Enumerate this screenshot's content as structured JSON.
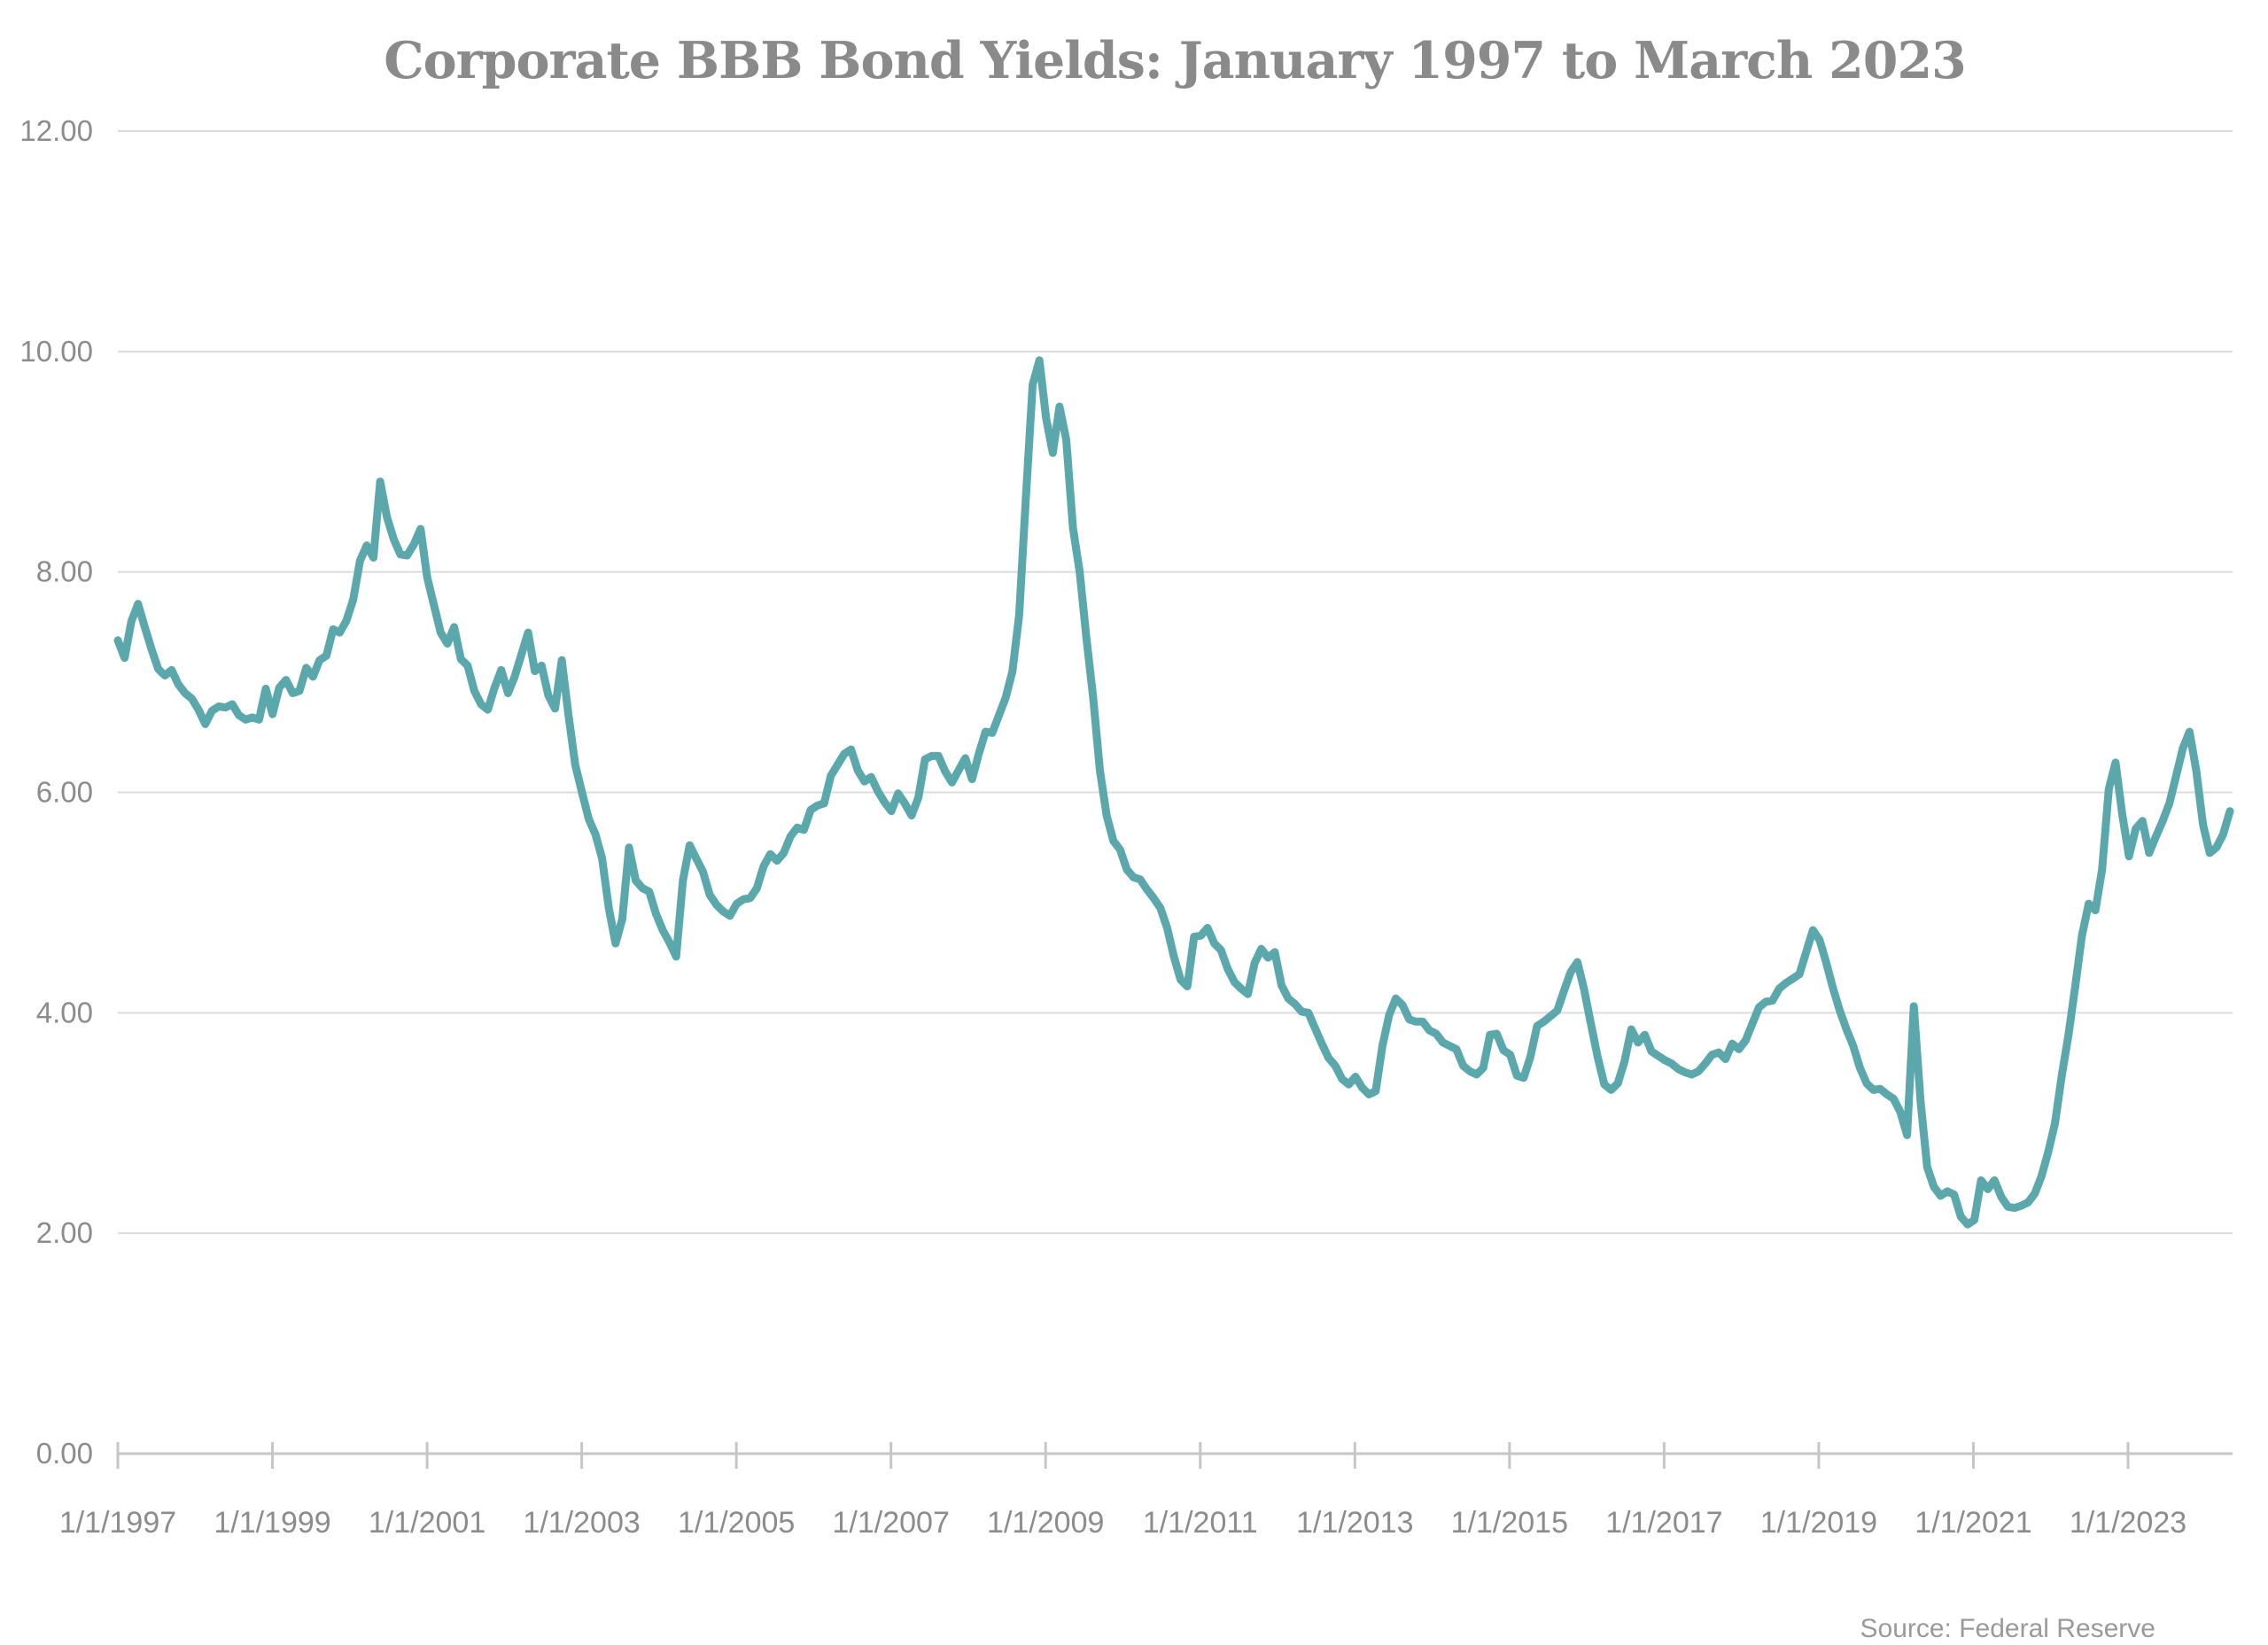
{
  "page": {
    "background_color": "#ffffff"
  },
  "chart_data": {
    "type": "line",
    "title": "Corporate BBB Bond Yields: January 1997 to March 2023",
    "source_note": "Source: Federal Reserve",
    "series_name": "Corporate BBB bond yield (%)",
    "frequency": "monthly",
    "start_date": "1/1/1997",
    "end_date": "3/1/2023",
    "legend_position": "none",
    "grid": "horizontal",
    "ylim": [
      0,
      12
    ],
    "y_tick_step": 2,
    "y_tick_labels": [
      "0.00",
      "2.00",
      "4.00",
      "6.00",
      "8.00",
      "10.00",
      "12.00"
    ],
    "x_tick_labels": [
      "1/1/1997",
      "1/1/1999",
      "1/1/2001",
      "1/1/2003",
      "1/1/2005",
      "1/1/2007",
      "1/1/2009",
      "1/1/2011",
      "1/1/2013",
      "1/1/2015",
      "1/1/2017",
      "1/1/2019",
      "1/1/2021",
      "1/1/2023"
    ],
    "line_color": "#5ba8ac",
    "gridline_color": "#dcdcdc",
    "axis_color": "#c6c6c6",
    "text_color": "#8c8c8c",
    "title_color": "#8a8a8a",
    "values": [
      7.38,
      7.22,
      7.55,
      7.71,
      7.5,
      7.3,
      7.12,
      7.06,
      7.11,
      6.98,
      6.9,
      6.85,
      6.75,
      6.62,
      6.74,
      6.78,
      6.77,
      6.8,
      6.7,
      6.66,
      6.68,
      6.66,
      6.94,
      6.71,
      6.95,
      7.02,
      6.9,
      6.92,
      7.13,
      7.05,
      7.2,
      7.24,
      7.48,
      7.45,
      7.56,
      7.75,
      8.1,
      8.24,
      8.13,
      8.82,
      8.5,
      8.3,
      8.16,
      8.15,
      8.25,
      8.39,
      7.95,
      7.7,
      7.45,
      7.35,
      7.5,
      7.21,
      7.15,
      6.92,
      6.8,
      6.75,
      6.95,
      7.11,
      6.9,
      7.05,
      7.25,
      7.45,
      7.1,
      7.15,
      6.88,
      6.76,
      7.2,
      6.7,
      6.25,
      6.0,
      5.76,
      5.62,
      5.4,
      4.95,
      4.63,
      4.85,
      5.5,
      5.2,
      5.13,
      5.1,
      4.9,
      4.75,
      4.64,
      4.51,
      5.2,
      5.52,
      5.4,
      5.28,
      5.07,
      4.98,
      4.92,
      4.88,
      4.99,
      5.03,
      5.04,
      5.13,
      5.33,
      5.44,
      5.38,
      5.45,
      5.6,
      5.68,
      5.66,
      5.84,
      5.88,
      5.9,
      6.15,
      6.25,
      6.35,
      6.39,
      6.2,
      6.1,
      6.14,
      6.01,
      5.91,
      5.83,
      5.99,
      5.9,
      5.79,
      5.95,
      6.3,
      6.33,
      6.33,
      6.19,
      6.09,
      6.2,
      6.31,
      6.12,
      6.35,
      6.55,
      6.54,
      6.7,
      6.86,
      7.1,
      7.61,
      8.68,
      9.7,
      9.92,
      9.4,
      9.08,
      9.5,
      9.2,
      8.4,
      8.0,
      7.4,
      6.86,
      6.2,
      5.79,
      5.56,
      5.48,
      5.3,
      5.23,
      5.21,
      5.12,
      5.04,
      4.95,
      4.77,
      4.51,
      4.3,
      4.24,
      4.69,
      4.7,
      4.77,
      4.63,
      4.57,
      4.4,
      4.28,
      4.22,
      4.17,
      4.45,
      4.58,
      4.5,
      4.55,
      4.25,
      4.13,
      4.08,
      4.01,
      4.0,
      3.86,
      3.72,
      3.59,
      3.52,
      3.4,
      3.35,
      3.42,
      3.32,
      3.26,
      3.29,
      3.7,
      3.98,
      4.13,
      4.07,
      3.94,
      3.92,
      3.92,
      3.84,
      3.81,
      3.73,
      3.7,
      3.67,
      3.52,
      3.47,
      3.44,
      3.5,
      3.8,
      3.81,
      3.66,
      3.62,
      3.43,
      3.41,
      3.6,
      3.88,
      3.92,
      3.97,
      4.02,
      4.2,
      4.37,
      4.46,
      4.21,
      3.9,
      3.6,
      3.35,
      3.3,
      3.36,
      3.56,
      3.85,
      3.73,
      3.8,
      3.65,
      3.61,
      3.57,
      3.54,
      3.49,
      3.46,
      3.44,
      3.47,
      3.54,
      3.62,
      3.64,
      3.58,
      3.72,
      3.67,
      3.75,
      3.9,
      4.05,
      4.1,
      4.11,
      4.22,
      4.27,
      4.31,
      4.35,
      4.55,
      4.75,
      4.66,
      4.45,
      4.22,
      4.02,
      3.85,
      3.7,
      3.5,
      3.36,
      3.3,
      3.31,
      3.26,
      3.22,
      3.1,
      2.89,
      4.06,
      3.2,
      2.6,
      2.42,
      2.34,
      2.38,
      2.35,
      2.15,
      2.08,
      2.12,
      2.48,
      2.4,
      2.48,
      2.33,
      2.24,
      2.23,
      2.25,
      2.28,
      2.36,
      2.52,
      2.74,
      3.0,
      3.43,
      3.8,
      4.24,
      4.7,
      4.99,
      4.93,
      5.3,
      6.03,
      6.27,
      5.8,
      5.42,
      5.67,
      5.74,
      5.45,
      5.6,
      5.74,
      5.9,
      6.15,
      6.4,
      6.55,
      6.2,
      5.71,
      5.45,
      5.5,
      5.62,
      5.83
    ]
  }
}
